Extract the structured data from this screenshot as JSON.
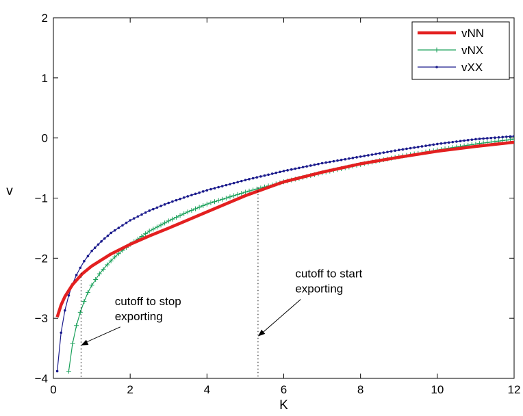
{
  "chart_data": {
    "type": "line",
    "xlabel": "K",
    "ylabel": "v",
    "xlim": [
      0,
      12
    ],
    "ylim": [
      -4,
      2
    ],
    "xticks": [
      0,
      2,
      4,
      6,
      8,
      10,
      12
    ],
    "yticks": [
      -4,
      -3,
      -2,
      -1,
      0,
      1,
      2
    ],
    "xtick_labels": [
      "0",
      "2",
      "4",
      "6",
      "8",
      "10",
      "12"
    ],
    "ytick_labels": [
      "−4",
      "−3",
      "−2",
      "−1",
      "0",
      "1",
      "2"
    ],
    "grid": false,
    "legend_position": "top-right",
    "series": [
      {
        "name": "vNN",
        "color": "#e32020",
        "marker": "none",
        "x": [
          0.1,
          0.2,
          0.3,
          0.5,
          0.75,
          1,
          1.5,
          2,
          2.5,
          3,
          4,
          5,
          6,
          7,
          8,
          9,
          10,
          11,
          12
        ],
        "y": [
          -2.98,
          -2.78,
          -2.64,
          -2.44,
          -2.26,
          -2.13,
          -1.93,
          -1.77,
          -1.63,
          -1.5,
          -1.23,
          -0.96,
          -0.73,
          -0.57,
          -0.43,
          -0.32,
          -0.22,
          -0.14,
          -0.07
        ]
      },
      {
        "name": "vNX",
        "color": "#1aa05a",
        "marker": "plus",
        "x": [
          0.4,
          0.5,
          0.6,
          0.7,
          0.8,
          0.9,
          1,
          1.2,
          1.4,
          1.6,
          1.8,
          2,
          2.5,
          3,
          3.5,
          4,
          5,
          6,
          7,
          8,
          9,
          10,
          11,
          12
        ],
        "y": [
          -3.88,
          -3.42,
          -3.12,
          -2.9,
          -2.72,
          -2.57,
          -2.45,
          -2.26,
          -2.11,
          -1.98,
          -1.87,
          -1.77,
          -1.55,
          -1.38,
          -1.23,
          -1.1,
          -0.9,
          -0.73,
          -0.58,
          -0.44,
          -0.31,
          -0.2,
          -0.1,
          -0.02
        ]
      },
      {
        "name": "vXX",
        "color": "#1a1a8c",
        "marker": "dot",
        "x": [
          0.1,
          0.2,
          0.3,
          0.4,
          0.5,
          0.6,
          0.7,
          0.8,
          1,
          1.25,
          1.5,
          2,
          2.5,
          3,
          3.5,
          4,
          5,
          6,
          7,
          8,
          9,
          10,
          11,
          12
        ],
        "y": [
          -3.88,
          -3.24,
          -2.87,
          -2.62,
          -2.43,
          -2.28,
          -2.16,
          -2.05,
          -1.88,
          -1.72,
          -1.58,
          -1.37,
          -1.21,
          -1.08,
          -0.97,
          -0.87,
          -0.7,
          -0.55,
          -0.42,
          -0.31,
          -0.2,
          -0.1,
          -0.02,
          0.03
        ]
      }
    ],
    "annotations": [
      {
        "name": "cutoff-stop",
        "lines": [
          "cutoff to stop",
          "exporting"
        ],
        "cutoff_x": 0.72,
        "cutoff_y": -2.25,
        "arrow_to": [
          0.72,
          -3.45
        ],
        "text_anchor": [
          1.6,
          -2.78
        ]
      },
      {
        "name": "cutoff-start",
        "lines": [
          "cutoff to start",
          "exporting"
        ],
        "cutoff_x": 5.33,
        "cutoff_y": -0.82,
        "arrow_to": [
          5.33,
          -3.3
        ],
        "text_anchor": [
          6.3,
          -2.32
        ]
      }
    ]
  }
}
